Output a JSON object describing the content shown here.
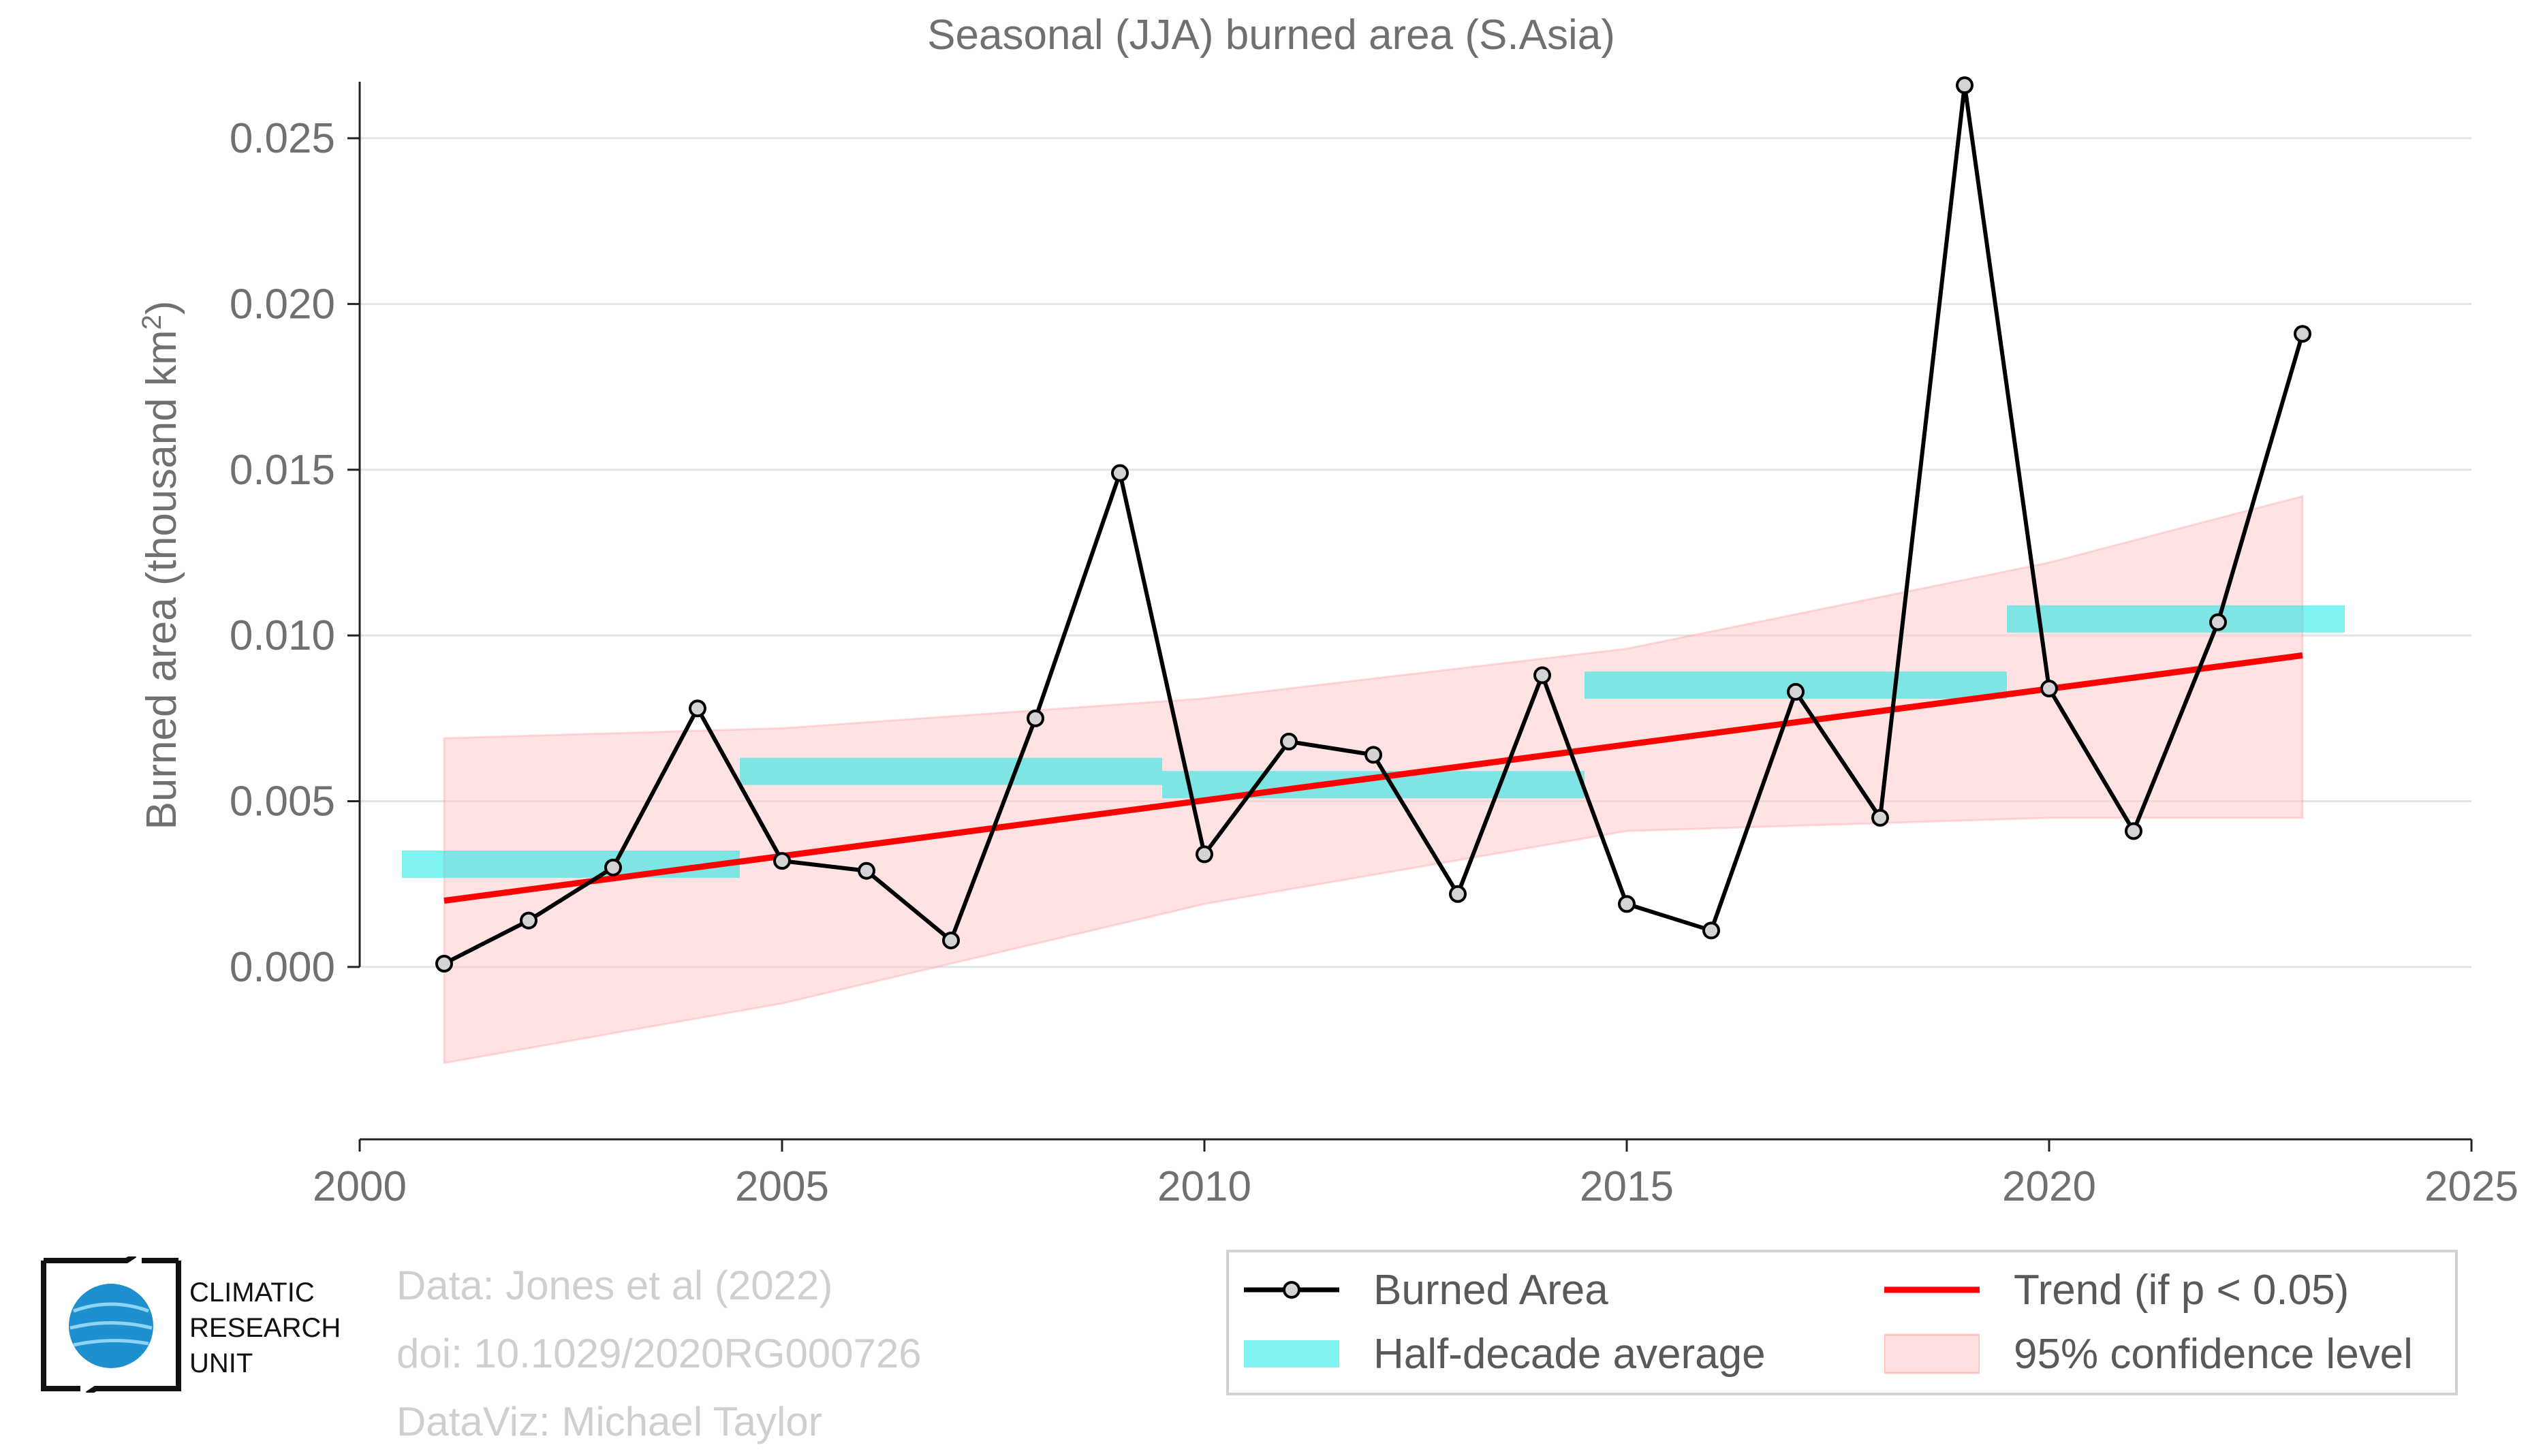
{
  "chart_data": {
    "type": "line",
    "title": "Seasonal (JJA) burned area (S.Asia)",
    "ylabel_main": "Burned area (thousand km",
    "ylabel_sup": "2",
    "ylabel_close": ")",
    "xlabel": "",
    "xlim": [
      2000,
      2025
    ],
    "ylim": [
      -0.0052,
      0.0265
    ],
    "x_ticks": [
      2000,
      2005,
      2010,
      2015,
      2020,
      2025
    ],
    "y_ticks": [
      0.0,
      0.005,
      0.01,
      0.015,
      0.02,
      0.025
    ],
    "y_tick_labels": [
      "0.000",
      "0.005",
      "0.010",
      "0.015",
      "0.020",
      "0.025"
    ],
    "grid": "horizontal",
    "series": [
      {
        "name": "Burned Area",
        "color": "#000000",
        "marker_fill": "#d3d3d3",
        "x": [
          2001,
          2002,
          2003,
          2004,
          2005,
          2006,
          2007,
          2008,
          2009,
          2010,
          2011,
          2012,
          2013,
          2014,
          2015,
          2016,
          2017,
          2018,
          2019,
          2020,
          2021,
          2022,
          2023
        ],
        "values": [
          0.0001,
          0.0014,
          0.003,
          0.0078,
          0.0032,
          0.0029,
          0.0008,
          0.0075,
          0.0149,
          0.0034,
          0.0068,
          0.0064,
          0.0022,
          0.0088,
          0.0019,
          0.0011,
          0.0083,
          0.0045,
          0.0266,
          0.0084,
          0.0041,
          0.0104,
          0.0191
        ]
      }
    ],
    "half_decade_average": {
      "name": "Half-decade average",
      "color": "#00e5e5",
      "segments": [
        {
          "x0": 2000.5,
          "x1": 2004.5,
          "y": 0.0031
        },
        {
          "x0": 2004.5,
          "x1": 2009.5,
          "y": 0.0059
        },
        {
          "x0": 2009.5,
          "x1": 2014.5,
          "y": 0.0055
        },
        {
          "x0": 2014.5,
          "x1": 2019.5,
          "y": 0.0085
        },
        {
          "x0": 2019.5,
          "x1": 2023.5,
          "y": 0.0105
        }
      ]
    },
    "trend": {
      "name": "Trend (if p < 0.05)",
      "color": "#ff0000",
      "x": [
        2001,
        2023
      ],
      "values": [
        0.002,
        0.0094
      ]
    },
    "confidence": {
      "name": "95% confidence level",
      "color": "#ffcccc",
      "x": [
        2001,
        2005,
        2010,
        2015,
        2020,
        2023
      ],
      "upper": [
        0.0069,
        0.0072,
        0.0081,
        0.0096,
        0.0122,
        0.0142
      ],
      "lower": [
        -0.0029,
        -0.0011,
        0.0019,
        0.0041,
        0.0045,
        0.0045
      ]
    },
    "legend_position": "bottom-right"
  },
  "credits": {
    "line1": "Data: Jones et al (2022)",
    "line2": "doi: 10.1029/2020RG000726",
    "line3": "DataViz: Michael Taylor"
  },
  "logo": {
    "line1": "CLIMATIC",
    "line2": "RESEARCH",
    "line3": "UNIT",
    "globe_color": "#1e90d0"
  },
  "legend": {
    "burned_area": "Burned Area",
    "trend": "Trend (if p < 0.05)",
    "half_decade": "Half-decade average",
    "confidence": "95% confidence level"
  }
}
